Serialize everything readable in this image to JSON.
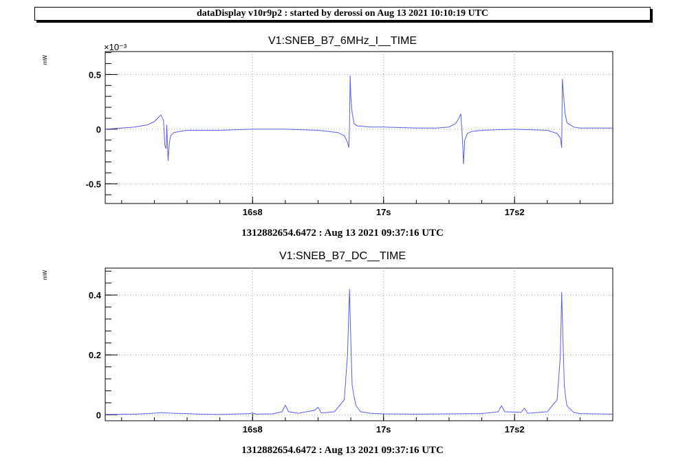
{
  "banner": "dataDisplay v10r9p2 : started by derossi on Aug 13 2021 10:10:19 UTC",
  "colors": {
    "trace": "#5b5bee",
    "grid": "#a0a0a0",
    "frame": "#000000"
  },
  "chart_data": [
    {
      "type": "line",
      "title": "V1:SNEB_B7_6MHz_I__TIME",
      "ylabel": "mW",
      "yexponent": "×10⁻³",
      "xlabel": "1312882654.6472 : Aug 13 2021 09:37:16 UTC",
      "xlim": [
        16.575,
        17.35
      ],
      "ylim": [
        -0.00068,
        0.00071
      ],
      "grid": true,
      "x_ticks": [
        {
          "value": 16.8,
          "label": "16s8"
        },
        {
          "value": 17.0,
          "label": "17s"
        },
        {
          "value": 17.2,
          "label": "17s2"
        }
      ],
      "y_ticks": [
        {
          "value": -0.0005,
          "label": "-0.5"
        },
        {
          "value": 0,
          "label": "0"
        },
        {
          "value": 0.0005,
          "label": "0.5"
        }
      ],
      "series": [
        {
          "values": [
            [
              16.575,
              0.0
            ],
            [
              16.6,
              1e-05
            ],
            [
              16.62,
              2e-05
            ],
            [
              16.64,
              4e-05
            ],
            [
              16.65,
              7e-05
            ],
            [
              16.655,
              0.0001
            ],
            [
              16.66,
              0.00013
            ],
            [
              16.664,
              8e-05
            ],
            [
              16.666,
              -0.00015
            ],
            [
              16.668,
              -0.00018
            ],
            [
              16.669,
              4e-05
            ],
            [
              16.671,
              -0.00029
            ],
            [
              16.673,
              -0.00012
            ],
            [
              16.675,
              -6e-05
            ],
            [
              16.68,
              -3e-05
            ],
            [
              16.7,
              -1e-05
            ],
            [
              16.75,
              -1e-05
            ],
            [
              16.8,
              0.0
            ],
            [
              16.85,
              0.0
            ],
            [
              16.9,
              -1e-05
            ],
            [
              16.93,
              -3e-05
            ],
            [
              16.94,
              -6e-05
            ],
            [
              16.945,
              -0.00012
            ],
            [
              16.947,
              -0.00017
            ],
            [
              16.948,
              3e-05
            ],
            [
              16.949,
              0.00049
            ],
            [
              16.95,
              0.0003
            ],
            [
              16.952,
              0.00015
            ],
            [
              16.955,
              5e-05
            ],
            [
              16.96,
              3e-05
            ],
            [
              16.98,
              2e-05
            ],
            [
              17.0,
              2e-05
            ],
            [
              17.05,
              1e-05
            ],
            [
              17.08,
              1e-05
            ],
            [
              17.1,
              2e-05
            ],
            [
              17.11,
              5e-05
            ],
            [
              17.115,
              0.0001
            ],
            [
              17.118,
              0.00014
            ],
            [
              17.12,
              -5e-05
            ],
            [
              17.121,
              -0.00015
            ],
            [
              17.122,
              -0.00032
            ],
            [
              17.124,
              -0.0001
            ],
            [
              17.128,
              -4e-05
            ],
            [
              17.135,
              -2e-05
            ],
            [
              17.15,
              -1e-05
            ],
            [
              17.2,
              0.0
            ],
            [
              17.25,
              -1e-05
            ],
            [
              17.265,
              -4e-05
            ],
            [
              17.27,
              -8e-05
            ],
            [
              17.272,
              -0.00017
            ],
            [
              17.273,
              0.00046
            ],
            [
              17.275,
              0.0003
            ],
            [
              17.277,
              0.00015
            ],
            [
              17.28,
              6e-05
            ],
            [
              17.29,
              2e-05
            ],
            [
              17.3,
              1e-05
            ],
            [
              17.32,
              1e-05
            ],
            [
              17.35,
              1e-05
            ]
          ]
        }
      ]
    },
    {
      "type": "line",
      "title": "V1:SNEB_B7_DC__TIME",
      "ylabel": "mW",
      "xlabel": "1312882654.6472 : Aug 13 2021 09:37:16 UTC",
      "xlim": [
        16.575,
        17.35
      ],
      "ylim": [
        -0.02,
        0.49
      ],
      "grid": true,
      "x_ticks": [
        {
          "value": 16.8,
          "label": "16s8"
        },
        {
          "value": 17.0,
          "label": "17s"
        },
        {
          "value": 17.2,
          "label": "17s2"
        }
      ],
      "y_ticks": [
        {
          "value": 0,
          "label": "0"
        },
        {
          "value": 0.2,
          "label": "0.2"
        },
        {
          "value": 0.4,
          "label": "0.4"
        }
      ],
      "series": [
        {
          "values": [
            [
              16.575,
              0.001
            ],
            [
              16.62,
              0.002
            ],
            [
              16.64,
              0.004
            ],
            [
              16.66,
              0.007
            ],
            [
              16.68,
              0.005
            ],
            [
              16.7,
              0.004
            ],
            [
              16.72,
              0.002
            ],
            [
              16.75,
              0.001
            ],
            [
              16.795,
              0.004
            ],
            [
              16.8,
              0.006
            ],
            [
              16.805,
              0.002
            ],
            [
              16.83,
              0.003
            ],
            [
              16.845,
              0.01
            ],
            [
              16.85,
              0.032
            ],
            [
              16.855,
              0.01
            ],
            [
              16.87,
              0.005
            ],
            [
              16.895,
              0.015
            ],
            [
              16.9,
              0.025
            ],
            [
              16.905,
              0.006
            ],
            [
              16.925,
              0.01
            ],
            [
              16.94,
              0.05
            ],
            [
              16.945,
              0.2
            ],
            [
              16.948,
              0.42
            ],
            [
              16.95,
              0.25
            ],
            [
              16.952,
              0.1
            ],
            [
              16.955,
              0.06
            ],
            [
              16.958,
              0.03
            ],
            [
              16.965,
              0.01
            ],
            [
              16.98,
              0.005
            ],
            [
              17.0,
              0.003
            ],
            [
              17.05,
              0.002
            ],
            [
              17.1,
              0.003
            ],
            [
              17.15,
              0.004
            ],
            [
              17.175,
              0.01
            ],
            [
              17.18,
              0.03
            ],
            [
              17.185,
              0.01
            ],
            [
              17.21,
              0.008
            ],
            [
              17.215,
              0.022
            ],
            [
              17.22,
              0.005
            ],
            [
              17.25,
              0.01
            ],
            [
              17.265,
              0.05
            ],
            [
              17.27,
              0.2
            ],
            [
              17.272,
              0.41
            ],
            [
              17.274,
              0.25
            ],
            [
              17.276,
              0.1
            ],
            [
              17.278,
              0.06
            ],
            [
              17.28,
              0.03
            ],
            [
              17.29,
              0.008
            ],
            [
              17.3,
              0.004
            ],
            [
              17.35,
              0.002
            ]
          ]
        }
      ]
    }
  ]
}
